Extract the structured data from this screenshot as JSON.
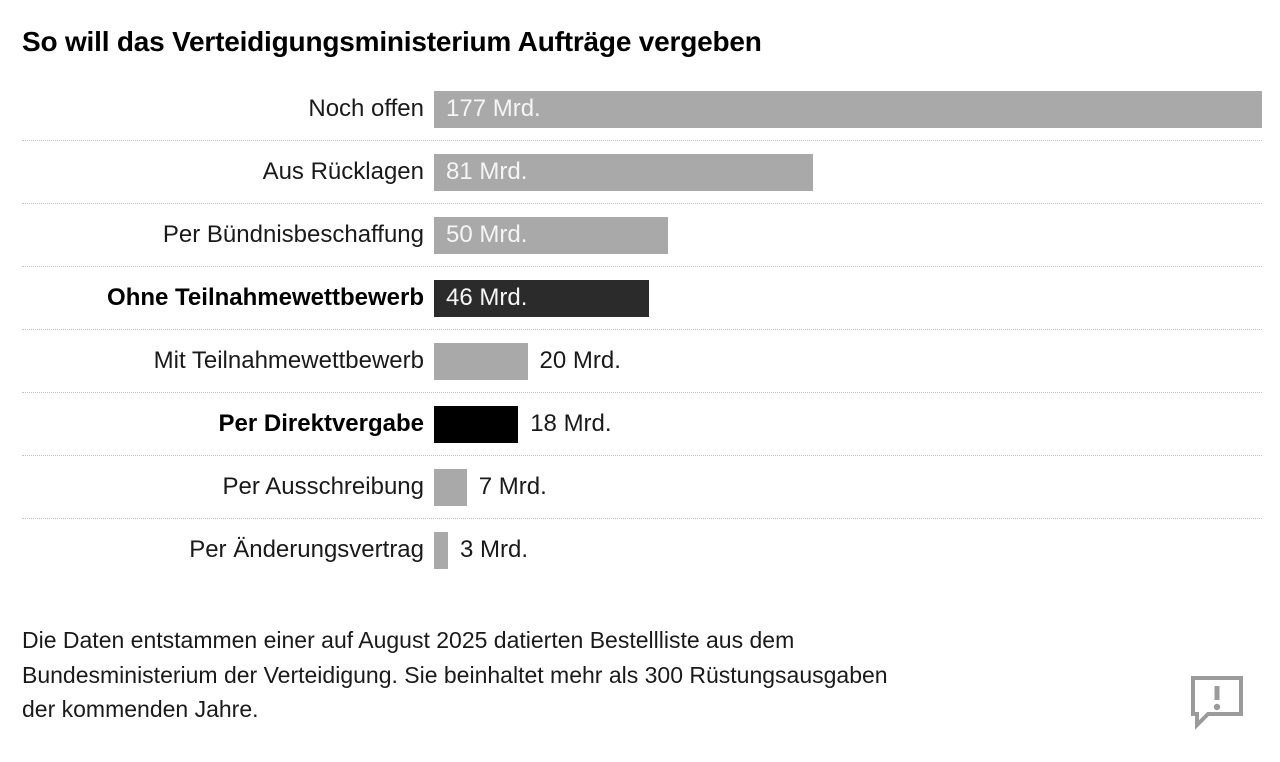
{
  "title": "So will das Verteidigungsministerium Aufträge vergeben",
  "footer_lines": {
    "0": "Die Daten entstammen einer auf August 2025 datierten Bestellliste aus dem",
    "1": "Bundesministerium der Verteidigung. Sie beinhaltet mehr als 300 Rüstungsausgaben",
    "2": "der kommenden Jahre."
  },
  "footer_text": "Die Daten entstammen einer auf August 2025 datierten Bestellliste aus dem Bundesministerium der Verteidigung. Sie beinhaltet mehr als 300 Rüstungsausgaben der kommenden Jahre.",
  "icons": {
    "feedback": "speech-bubble-exclamation-icon"
  },
  "colors": {
    "bar_gray": "#a9a9a9",
    "bar_dark": "#2b2b2b",
    "bar_black": "#000000",
    "value_inside": "#f5f5f5",
    "value_outside": "#1a1a1a",
    "separator": "#c3c3c3",
    "icon_gray": "#9b9b9b"
  },
  "chart_data": {
    "type": "bar",
    "orientation": "horizontal",
    "title": "So will das Verteidigungsministerium Aufträge vergeben",
    "unit": "Mrd.",
    "xlim": [
      0,
      177
    ],
    "grid": false,
    "legend": "none",
    "categories": [
      "Noch offen",
      "Aus Rücklagen",
      "Per Bündnisbeschaffung",
      "Ohne Teilnahmewettbewerb",
      "Mit Teilnahmewettbewerb",
      "Per Direktvergabe",
      "Per Ausschreibung",
      "Per Änderungsvertrag"
    ],
    "values": [
      177,
      81,
      50,
      46,
      20,
      18,
      7,
      3
    ],
    "bars": [
      {
        "label": "Noch offen",
        "value": 177,
        "value_label": "177 Mrd.",
        "color": "#a9a9a9",
        "bold_label": false,
        "value_inside": true
      },
      {
        "label": "Aus Rücklagen",
        "value": 81,
        "value_label": "81 Mrd.",
        "color": "#a9a9a9",
        "bold_label": false,
        "value_inside": true
      },
      {
        "label": "Per Bündnisbeschaffung",
        "value": 50,
        "value_label": "50 Mrd.",
        "color": "#a9a9a9",
        "bold_label": false,
        "value_inside": true
      },
      {
        "label": "Ohne Teilnahmewettbewerb",
        "value": 46,
        "value_label": "46 Mrd.",
        "color": "#2b2b2b",
        "bold_label": true,
        "value_inside": true
      },
      {
        "label": "Mit Teilnahmewettbewerb",
        "value": 20,
        "value_label": "20 Mrd.",
        "color": "#a9a9a9",
        "bold_label": false,
        "value_inside": false
      },
      {
        "label": "Per Direktvergabe",
        "value": 18,
        "value_label": "18 Mrd.",
        "color": "#000000",
        "bold_label": true,
        "value_inside": false
      },
      {
        "label": "Per Ausschreibung",
        "value": 7,
        "value_label": "7 Mrd.",
        "color": "#a9a9a9",
        "bold_label": false,
        "value_inside": false
      },
      {
        "label": "Per Änderungsvertrag",
        "value": 3,
        "value_label": "3 Mrd.",
        "color": "#a9a9a9",
        "bold_label": false,
        "value_inside": false
      }
    ]
  }
}
